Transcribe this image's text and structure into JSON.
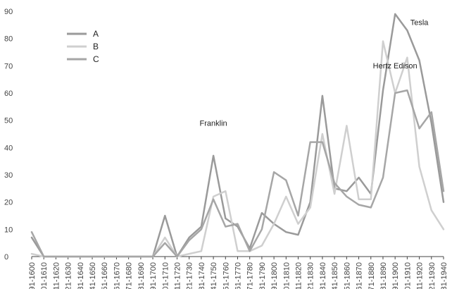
{
  "chart_data": {
    "type": "line",
    "categories": [
      "1591-1600",
      "1601-1610",
      "1611-1620",
      "1621-1630",
      "1631-1640",
      "1641-1650",
      "1651-1660",
      "1661-1670",
      "1671-1680",
      "1681-1690",
      "1691-1700",
      "1701-1710",
      "1711-1720",
      "1721-1730",
      "1731-1740",
      "1741-1750",
      "1751-1760",
      "1761-1770",
      "1771-1780",
      "1781-1790",
      "1791-1800",
      "1801-1810",
      "1811-1820",
      "1821-1830",
      "1831-1840",
      "1841-1850",
      "1851-1860",
      "1861-1870",
      "1871-1880",
      "1881-1890",
      "1891-1900",
      "1901-1910",
      "1911-1920",
      "1921-1930",
      "1931-1940"
    ],
    "series": [
      {
        "name": "A",
        "color": "#9a9a9a",
        "values": [
          7,
          0,
          0,
          0,
          0,
          0,
          0,
          0,
          0,
          0,
          0,
          15,
          0,
          7,
          11,
          37,
          14,
          11,
          3,
          16,
          12,
          9,
          8,
          20,
          59,
          25,
          24,
          29,
          23,
          61,
          89,
          83,
          72,
          49,
          20
        ]
      },
      {
        "name": "B",
        "color": "#cfcfcf",
        "values": [
          1,
          0,
          0,
          0,
          0,
          0,
          0,
          0,
          0,
          0,
          0,
          7,
          0,
          1,
          2,
          22,
          24,
          2,
          2,
          4,
          12,
          22,
          12,
          18,
          45,
          23,
          48,
          21,
          21,
          79,
          60,
          73,
          33,
          17,
          10
        ]
      },
      {
        "name": "C",
        "color": "#a6a6a6",
        "values": [
          9,
          0,
          0,
          0,
          0,
          0,
          0,
          0,
          0,
          0,
          0,
          5,
          0,
          6,
          10,
          21,
          11,
          12,
          2,
          10,
          31,
          28,
          15,
          42,
          42,
          27,
          22,
          19,
          18,
          29,
          60,
          61,
          47,
          53,
          24
        ]
      }
    ],
    "ylim": [
      0,
      90
    ],
    "yticks": [
      0,
      10,
      20,
      30,
      40,
      50,
      60,
      70,
      80,
      90
    ],
    "annotations": [
      {
        "text": "Franklin",
        "x": "1741-1750",
        "y": 48
      },
      {
        "text": "Hertz Edison",
        "x": "1891-1900",
        "y": 69
      },
      {
        "text": "Tesla",
        "x": "1911-1920",
        "y": 85
      }
    ],
    "legend": {
      "placement": "top-left"
    },
    "grid": false
  }
}
